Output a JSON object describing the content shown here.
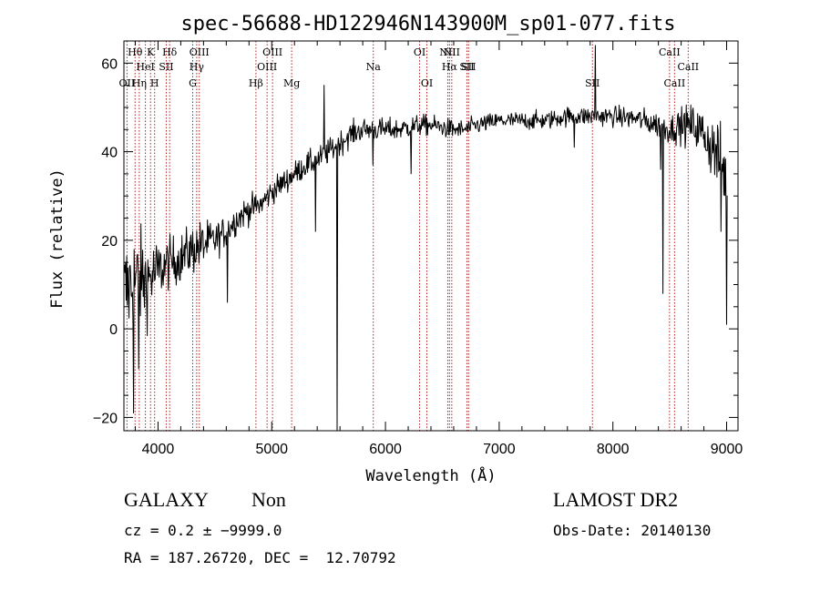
{
  "chart_data": {
    "type": "line",
    "title": "spec-56688-HD122946N143900M_sp01-077.fits",
    "xlabel": "Wavelength (Å)",
    "ylabel": "Flux (relative)",
    "xlim": [
      3700,
      9100
    ],
    "ylim": [
      -23,
      65
    ],
    "xticks": [
      {
        "value": 4000,
        "label": "4000"
      },
      {
        "value": 5000,
        "label": "5000"
      },
      {
        "value": 6000,
        "label": "6000"
      },
      {
        "value": 7000,
        "label": "7000"
      },
      {
        "value": 8000,
        "label": "8000"
      },
      {
        "value": 9000,
        "label": "9000"
      }
    ],
    "yticks": [
      {
        "value": -20,
        "label": "−20"
      },
      {
        "value": 0,
        "label": "0"
      },
      {
        "value": 20,
        "label": "20"
      },
      {
        "value": 40,
        "label": "40"
      },
      {
        "value": 60,
        "label": "60"
      }
    ],
    "lines": [
      {
        "wl": 3727,
        "label": "OII",
        "row": 3
      },
      {
        "wl": 3798,
        "label": "Hθ",
        "row": 1
      },
      {
        "wl": 3835,
        "label": "Hη",
        "row": 3
      },
      {
        "wl": 3889,
        "label": "HeI",
        "row": 2
      },
      {
        "wl": 3934,
        "label": "K",
        "row": 1
      },
      {
        "wl": 3970,
        "label": "H",
        "row": 3
      },
      {
        "wl": 4072,
        "label": "SII",
        "row": 2
      },
      {
        "wl": 4102,
        "label": "Hδ",
        "row": 1
      },
      {
        "wl": 4305,
        "label": "G",
        "row": 3
      },
      {
        "wl": 4340,
        "label": "Hγ",
        "row": 2
      },
      {
        "wl": 4363,
        "label": "OIII",
        "row": 1
      },
      {
        "wl": 4861,
        "label": "Hβ",
        "row": 3
      },
      {
        "wl": 4959,
        "label": "OIII",
        "row": 2
      },
      {
        "wl": 5007,
        "label": "OIII",
        "row": 1
      },
      {
        "wl": 5175,
        "label": "Mg",
        "row": 3
      },
      {
        "wl": 5893,
        "label": "Na",
        "row": 2
      },
      {
        "wl": 6300,
        "label": "OI",
        "row": 1
      },
      {
        "wl": 6364,
        "label": "OI",
        "row": 3
      },
      {
        "wl": 6548,
        "label": "NII",
        "row": 1
      },
      {
        "wl": 6563,
        "label": "Hα",
        "row": 2
      },
      {
        "wl": 6583,
        "label": "NII",
        "row": 1
      },
      {
        "wl": 6716,
        "label": "SII",
        "row": 2
      },
      {
        "wl": 6731,
        "label": "SII",
        "row": 2
      },
      {
        "wl": 7820,
        "label": "SII",
        "row": 3
      },
      {
        "wl": 8498,
        "label": "CaII",
        "row": 1
      },
      {
        "wl": 8542,
        "label": "CaII",
        "row": 3
      },
      {
        "wl": 8662,
        "label": "CaII",
        "row": 2
      }
    ],
    "continuum": [
      [
        3700,
        8
      ],
      [
        3800,
        11
      ],
      [
        3900,
        11
      ],
      [
        4000,
        13
      ],
      [
        4100,
        15
      ],
      [
        4200,
        16
      ],
      [
        4300,
        18
      ],
      [
        4400,
        19
      ],
      [
        4500,
        20
      ],
      [
        4600,
        22
      ],
      [
        4700,
        25
      ],
      [
        4800,
        27
      ],
      [
        4900,
        28
      ],
      [
        5000,
        31
      ],
      [
        5100,
        33
      ],
      [
        5200,
        35
      ],
      [
        5300,
        37
      ],
      [
        5400,
        38
      ],
      [
        5500,
        40
      ],
      [
        5600,
        42
      ],
      [
        5700,
        44
      ],
      [
        5800,
        45
      ],
      [
        5900,
        45
      ],
      [
        6000,
        45
      ],
      [
        6100,
        45
      ],
      [
        6200,
        45.5
      ],
      [
        6300,
        46
      ],
      [
        6400,
        46
      ],
      [
        6500,
        45.5
      ],
      [
        6600,
        45
      ],
      [
        6700,
        45
      ],
      [
        6800,
        46
      ],
      [
        6900,
        46.5
      ],
      [
        7000,
        47
      ],
      [
        7200,
        47
      ],
      [
        7400,
        47
      ],
      [
        7600,
        48
      ],
      [
        7800,
        48
      ],
      [
        8000,
        48
      ],
      [
        8200,
        47.5
      ],
      [
        8400,
        46
      ],
      [
        8500,
        45
      ],
      [
        8600,
        46
      ],
      [
        8700,
        46
      ],
      [
        8800,
        44
      ],
      [
        8900,
        40
      ],
      [
        9000,
        34
      ]
    ],
    "noise": [
      [
        3700,
        9
      ],
      [
        3800,
        9
      ],
      [
        3900,
        7
      ],
      [
        4000,
        5
      ],
      [
        4100,
        4
      ],
      [
        4200,
        4
      ],
      [
        4400,
        4
      ],
      [
        4500,
        3
      ],
      [
        4600,
        2.5
      ],
      [
        5000,
        2
      ],
      [
        5500,
        2
      ],
      [
        6000,
        1.8
      ],
      [
        7000,
        1.4
      ],
      [
        8000,
        1.6
      ],
      [
        8500,
        2.2
      ],
      [
        8800,
        4
      ],
      [
        9000,
        7
      ]
    ],
    "features": [
      {
        "wl": 3785,
        "min": -19
      },
      {
        "wl": 3830,
        "min": -9
      },
      {
        "wl": 4610,
        "min": 6
      },
      {
        "wl": 5385,
        "min": 22
      },
      {
        "wl": 5460,
        "max": 55
      },
      {
        "wl": 5577,
        "min": -24
      },
      {
        "wl": 5890,
        "min": 37
      },
      {
        "wl": 6225,
        "min": 35
      },
      {
        "wl": 7660,
        "min": 41
      },
      {
        "wl": 7845,
        "max": 64
      },
      {
        "wl": 8420,
        "min": 36
      },
      {
        "wl": 8440,
        "min": 8
      },
      {
        "wl": 8950,
        "min": 22
      },
      {
        "wl": 9000,
        "min": 1
      }
    ]
  },
  "info": {
    "class": "GALAXY",
    "subclass": "Non",
    "redshift": "cz = 0.2 ± −9999.0",
    "coords": "RA = 187.26720, DEC =  12.70792",
    "survey": "LAMOST DR2",
    "obsdate": "Obs-Date: 20140130"
  }
}
